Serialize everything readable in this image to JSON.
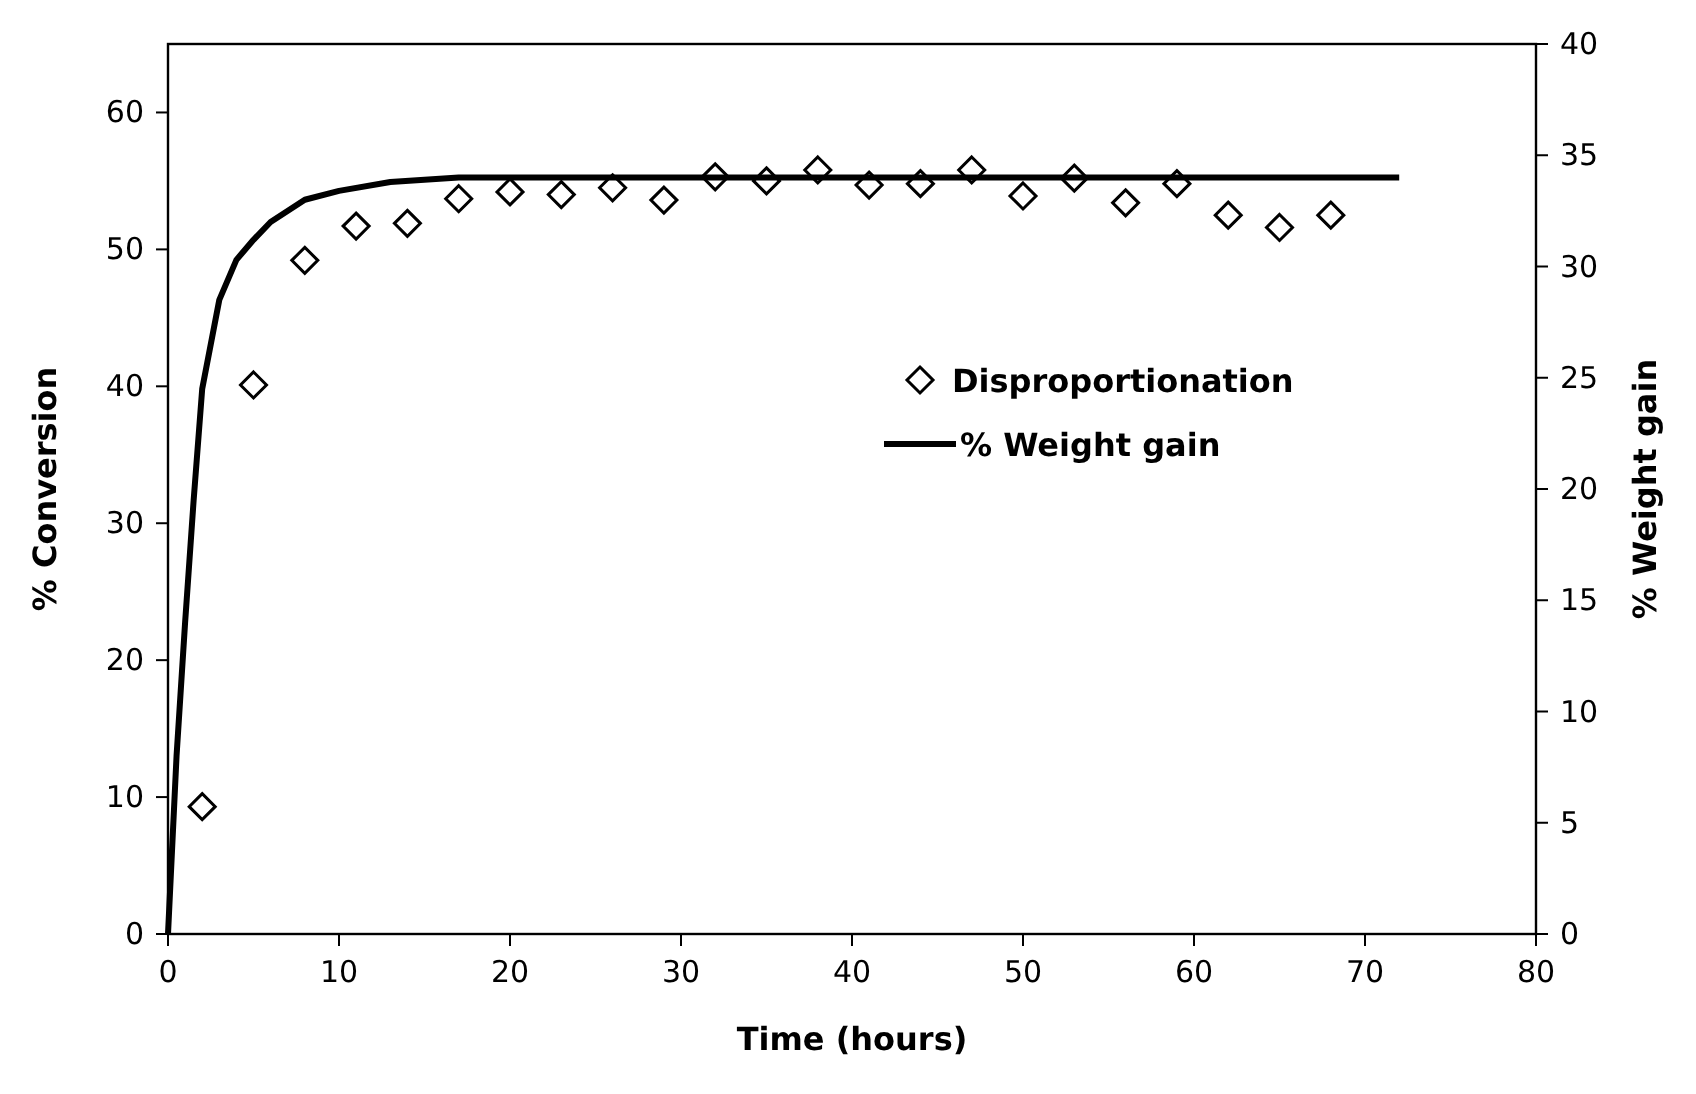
{
  "chart_data": {
    "type": "scatter",
    "xlabel": "Time (hours)",
    "ylabel": "% Conversion",
    "y2label": "% Weight gain",
    "xlim": [
      0,
      80
    ],
    "xticks": [
      0,
      10,
      20,
      30,
      40,
      50,
      60,
      70,
      80
    ],
    "ylim": [
      0,
      65
    ],
    "yticks": [
      0,
      10,
      20,
      30,
      40,
      50,
      60
    ],
    "y2lim": [
      0,
      40
    ],
    "y2ticks": [
      0,
      5,
      10,
      15,
      20,
      25,
      30,
      35,
      40
    ],
    "grid": false,
    "legend": "right",
    "series": [
      {
        "name": "Disproportionation",
        "marker": "diamond",
        "color": "#000000",
        "x": [
          2,
          5,
          8,
          11,
          14,
          17,
          20,
          23,
          26,
          29,
          32,
          35,
          38,
          41,
          44,
          47,
          50,
          53,
          56,
          59,
          62,
          65,
          68
        ],
        "values": [
          9.3,
          40.1,
          49.2,
          51.7,
          51.9,
          53.7,
          54.2,
          54.0,
          54.5,
          53.6,
          55.3,
          55.0,
          55.8,
          54.7,
          54.8,
          55.8,
          53.9,
          55.2,
          53.4,
          54.8,
          52.5,
          51.6,
          52.5
        ]
      },
      {
        "name": "% Weight gain",
        "type": "line",
        "axis": "y2",
        "marker": "none",
        "line_style": "solid",
        "color": "#000000",
        "x": [
          0,
          0.5,
          1,
          1.5,
          2,
          3,
          4,
          5,
          6,
          8,
          10,
          13,
          17,
          72
        ],
        "values": [
          0,
          8,
          14,
          19.5,
          24.5,
          28.5,
          30.3,
          31.2,
          32,
          33,
          33.4,
          33.8,
          34,
          34
        ]
      }
    ]
  }
}
